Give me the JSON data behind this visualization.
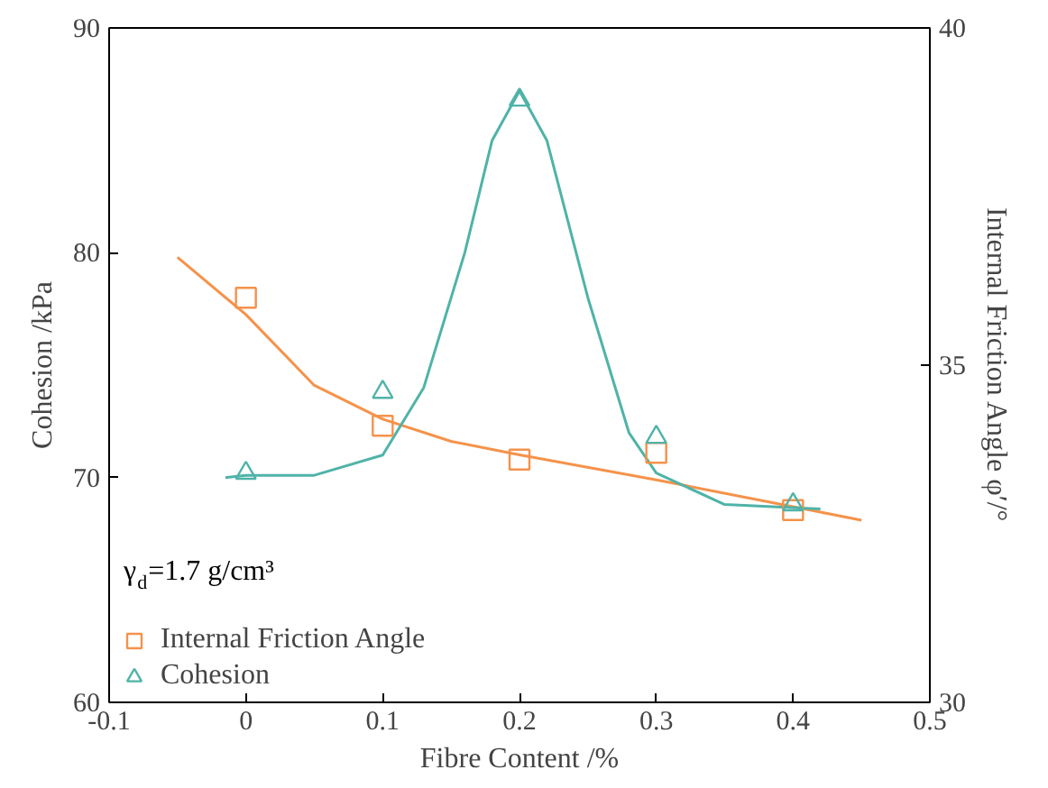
{
  "chart_data": {
    "type": "scatter",
    "xlabel": "Fibre Content /%",
    "ylabel": "Cohesion /kPa",
    "y2label": "Internal Friction Angle φ′/°",
    "legend_title": "γ$_{d}$=1.7 g/cm³",
    "legend": "bottom left",
    "grid": false,
    "xlim": [
      -0.1,
      0.5
    ],
    "xticks": [
      -0.1,
      0.0,
      0.1,
      0.2,
      0.3,
      0.4,
      0.5
    ],
    "ylim": [
      60,
      90
    ],
    "yticks": [
      60,
      70,
      80,
      90
    ],
    "y2lim": [
      30,
      40
    ],
    "y2ticks": [
      30,
      35,
      40
    ],
    "series": [
      {
        "name": "Internal Friction Angle",
        "marker": "square",
        "axis": "y2",
        "color": "#f5924a",
        "x": [
          0.0,
          0.1,
          0.2,
          0.3,
          0.4
        ],
        "values": [
          36.0,
          34.1,
          33.6,
          33.7,
          32.85
        ]
      },
      {
        "name": "Cohesion",
        "marker": "triangle",
        "color": "#4fb3a8",
        "x": [
          0.0,
          0.1,
          0.2,
          0.3,
          0.4
        ],
        "values": [
          70.2,
          73.8,
          86.8,
          71.8,
          68.8
        ]
      },
      {
        "type": "line",
        "axis": "y2",
        "color": "#f5924a",
        "x": [
          -0.05,
          0.0,
          0.05,
          0.1,
          0.15,
          0.2,
          0.3,
          0.4,
          0.45
        ],
        "values": [
          36.6,
          35.75,
          34.7,
          34.2,
          33.87,
          33.67,
          33.3,
          32.9,
          32.7
        ]
      },
      {
        "type": "line",
        "color": "#4fb3a8",
        "x": [
          -0.015,
          0.0,
          0.05,
          0.1,
          0.13,
          0.16,
          0.18,
          0.2,
          0.22,
          0.25,
          0.28,
          0.3,
          0.35,
          0.42
        ],
        "values": [
          70.0,
          70.1,
          70.1,
          71.0,
          74.0,
          80.0,
          85.0,
          87.2,
          85.0,
          78.0,
          72.0,
          70.2,
          68.8,
          68.6
        ]
      }
    ]
  }
}
